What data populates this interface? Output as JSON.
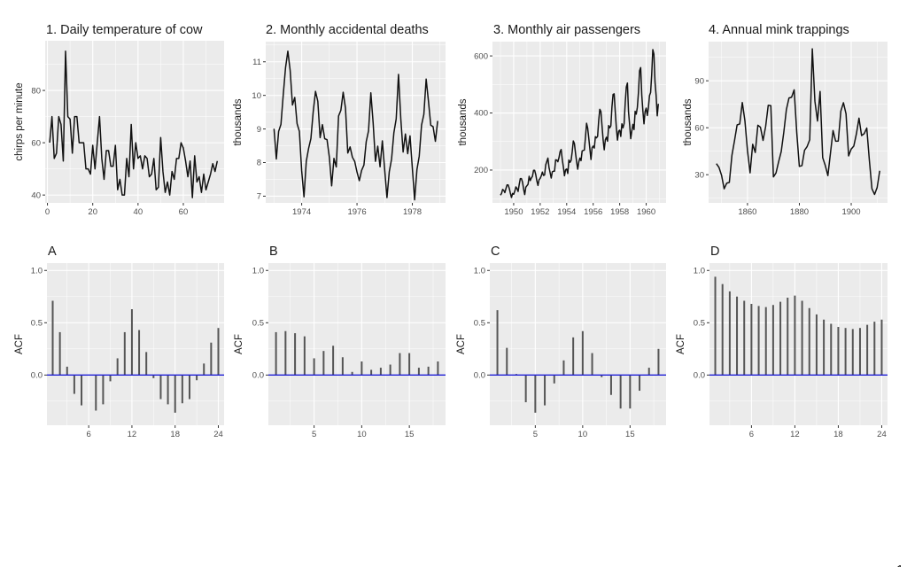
{
  "figure": {
    "corner_mark": "1"
  },
  "chart_data": [
    {
      "id": "p1",
      "type": "line",
      "title": "1. Daily temperature of cow",
      "xlabel": "",
      "ylabel": "chirps per minute",
      "xlim": [
        -1,
        78
      ],
      "ylim": [
        37,
        99
      ],
      "xticks": [
        0,
        20,
        40,
        60
      ],
      "yticks": [
        40,
        60,
        80
      ],
      "x_start": 1,
      "x_step": 1,
      "values": [
        60,
        70,
        54,
        56,
        70,
        67,
        53,
        95,
        70,
        69,
        56,
        70,
        70,
        60,
        60,
        60,
        50,
        50,
        48,
        59,
        50,
        60,
        70,
        54,
        46,
        57,
        57,
        51,
        51,
        59,
        42,
        46,
        40,
        40,
        54,
        47,
        67,
        50,
        60,
        54,
        55,
        50,
        55,
        54,
        47,
        48,
        54,
        42,
        43,
        62,
        49,
        41,
        45,
        40,
        49,
        46,
        54,
        54,
        60,
        58,
        53,
        47,
        53,
        39,
        55,
        45,
        47,
        41,
        48,
        42,
        45,
        48,
        52,
        49,
        53
      ],
      "grid": true
    },
    {
      "id": "p2",
      "type": "line",
      "title": "2. Monthly accidental deaths",
      "xlabel": "",
      "ylabel": "thousands",
      "xlim": [
        1972.7,
        1979.2
      ],
      "ylim": [
        6.8,
        11.6
      ],
      "xticks": [
        1974,
        1976,
        1978
      ],
      "yticks": [
        7,
        8,
        9,
        10,
        11
      ],
      "x_start": 1973.0,
      "x_step": 0.08333,
      "values": [
        9.007,
        8.106,
        8.928,
        9.137,
        10.017,
        10.826,
        11.317,
        10.744,
        9.713,
        9.938,
        9.161,
        8.927,
        7.75,
        6.981,
        8.038,
        8.422,
        8.714,
        9.512,
        10.12,
        9.823,
        8.743,
        9.129,
        8.71,
        8.68,
        8.162,
        7.306,
        8.124,
        7.87,
        9.387,
        9.556,
        10.093,
        9.62,
        8.285,
        8.466,
        8.16,
        8.034,
        7.717,
        7.461,
        7.767,
        7.925,
        8.623,
        8.945,
        10.078,
        9.179,
        8.037,
        8.488,
        7.874,
        8.647,
        7.792,
        6.957,
        7.726,
        8.106,
        8.89,
        9.299,
        10.625,
        9.302,
        8.314,
        8.85,
        8.265,
        8.796,
        7.836,
        6.892,
        7.791,
        8.192,
        9.115,
        9.434,
        10.484,
        9.827,
        9.11,
        9.07,
        8.633,
        9.24
      ],
      "grid": true
    },
    {
      "id": "p3",
      "type": "line",
      "title": "3. Monthly air passengers",
      "xlabel": "",
      "ylabel": "thousands",
      "xlim": [
        1948.4,
        1961.5
      ],
      "ylim": [
        85,
        650
      ],
      "xticks": [
        1950,
        1952,
        1954,
        1956,
        1958,
        1960
      ],
      "yticks": [
        200,
        400,
        600
      ],
      "x_start": 1949.0,
      "x_step": 0.08333,
      "values": [
        112,
        118,
        132,
        129,
        121,
        135,
        148,
        148,
        136,
        119,
        104,
        118,
        115,
        126,
        141,
        135,
        125,
        149,
        170,
        170,
        158,
        133,
        114,
        140,
        145,
        150,
        178,
        163,
        172,
        178,
        199,
        199,
        184,
        162,
        146,
        166,
        171,
        180,
        193,
        181,
        183,
        218,
        230,
        242,
        209,
        191,
        172,
        194,
        196,
        196,
        236,
        235,
        229,
        243,
        264,
        272,
        237,
        211,
        180,
        201,
        204,
        188,
        235,
        227,
        234,
        264,
        302,
        293,
        259,
        229,
        203,
        229,
        242,
        233,
        267,
        269,
        270,
        315,
        364,
        347,
        312,
        274,
        237,
        278,
        284,
        277,
        317,
        313,
        318,
        374,
        413,
        405,
        355,
        306,
        271,
        306,
        315,
        301,
        356,
        348,
        355,
        422,
        465,
        467,
        404,
        347,
        305,
        336,
        340,
        318,
        362,
        348,
        363,
        435,
        491,
        505,
        404,
        359,
        310,
        337,
        360,
        342,
        406,
        396,
        420,
        472,
        548,
        559,
        463,
        407,
        362,
        405,
        417,
        391,
        419,
        461,
        472,
        535,
        622,
        606,
        508,
        461,
        390,
        432
      ],
      "grid": true
    },
    {
      "id": "p4",
      "type": "line",
      "title": "4. Annual mink trappings",
      "xlabel": "",
      "ylabel": "thousands",
      "xlim": [
        1845,
        1914
      ],
      "ylim": [
        12,
        115
      ],
      "xticks": [
        1860,
        1880,
        1900
      ],
      "yticks": [
        30,
        60,
        90
      ],
      "x_start": 1848,
      "x_step": 1,
      "values": [
        37.1,
        34.7,
        29.6,
        21.0,
        24.6,
        25.1,
        42.4,
        51.8,
        61.8,
        62.4,
        76.1,
        64.5,
        45.4,
        31.2,
        49.4,
        44.2,
        61.6,
        60.3,
        51.9,
        60.8,
        74.3,
        74.1,
        28.6,
        31.1,
        38.2,
        44.7,
        57.1,
        71.6,
        79.0,
        79.5,
        84.2,
        56.8,
        35.3,
        35.8,
        45.6,
        48.0,
        52.3,
        110.4,
        76.9,
        64.3,
        83.2,
        40.9,
        35.9,
        29.4,
        43.8,
        58.2,
        51.4,
        51.5,
        70.6,
        76.0,
        68.9,
        42.0,
        46.4,
        48.3,
        56.1,
        66.1,
        55.0,
        56.2,
        59.8,
        39.2,
        21.0,
        17.4,
        21.8,
        32.5
      ],
      "grid": true
    },
    {
      "id": "pA",
      "type": "bar",
      "title": "A",
      "xlabel": "",
      "ylabel": "ACF",
      "xlim": [
        0.2,
        24.8
      ],
      "ylim": [
        -0.48,
        1.07
      ],
      "xticks": [
        6,
        12,
        18,
        24
      ],
      "yticks": [
        0.0,
        0.5,
        1.0
      ],
      "lags": [
        1,
        2,
        3,
        4,
        5,
        6,
        7,
        8,
        9,
        10,
        11,
        12,
        13,
        14,
        15,
        16,
        17,
        18,
        19,
        20,
        21,
        22,
        23,
        24
      ],
      "values": [
        0.71,
        0.41,
        0.08,
        -0.18,
        -0.29,
        0.0,
        -0.34,
        -0.28,
        -0.06,
        0.16,
        0.41,
        0.63,
        0.43,
        0.22,
        -0.03,
        -0.23,
        -0.28,
        -0.36,
        -0.27,
        -0.23,
        -0.05,
        0.11,
        0.31,
        0.45
      ],
      "grid": true
    },
    {
      "id": "pB",
      "type": "bar",
      "title": "B",
      "xlabel": "",
      "ylabel": "ACF",
      "xlim": [
        0.2,
        18.8
      ],
      "ylim": [
        -0.48,
        1.07
      ],
      "xticks": [
        5,
        10,
        15
      ],
      "yticks": [
        0.0,
        0.5,
        1.0
      ],
      "lags": [
        1,
        2,
        3,
        4,
        5,
        6,
        7,
        8,
        9,
        10,
        11,
        12,
        13,
        14,
        15,
        16,
        17,
        18
      ],
      "values": [
        0.41,
        0.42,
        0.4,
        0.37,
        0.16,
        0.23,
        0.28,
        0.17,
        0.03,
        0.13,
        0.05,
        0.07,
        0.1,
        0.21,
        0.21,
        0.07,
        0.08,
        0.13
      ],
      "grid": true
    },
    {
      "id": "pC",
      "type": "bar",
      "title": "C",
      "xlabel": "",
      "ylabel": "ACF",
      "xlim": [
        0.2,
        18.8
      ],
      "ylim": [
        -0.48,
        1.07
      ],
      "xticks": [
        5,
        10,
        15
      ],
      "yticks": [
        0.0,
        0.5,
        1.0
      ],
      "lags": [
        1,
        2,
        3,
        4,
        5,
        6,
        7,
        8,
        9,
        10,
        11,
        12,
        13,
        14,
        15,
        16,
        17,
        18
      ],
      "values": [
        0.62,
        0.26,
        0.01,
        -0.26,
        -0.36,
        -0.29,
        -0.08,
        0.14,
        0.36,
        0.42,
        0.21,
        -0.02,
        -0.19,
        -0.32,
        -0.32,
        -0.15,
        0.07,
        0.25
      ],
      "grid": true
    },
    {
      "id": "pD",
      "type": "bar",
      "title": "D",
      "xlabel": "",
      "ylabel": "ACF",
      "xlim": [
        0.2,
        24.8
      ],
      "ylim": [
        -0.48,
        1.07
      ],
      "xticks": [
        6,
        12,
        18,
        24
      ],
      "yticks": [
        0.0,
        0.5,
        1.0
      ],
      "lags": [
        1,
        2,
        3,
        4,
        5,
        6,
        7,
        8,
        9,
        10,
        11,
        12,
        13,
        14,
        15,
        16,
        17,
        18,
        19,
        20,
        21,
        22,
        23,
        24
      ],
      "values": [
        0.94,
        0.87,
        0.8,
        0.75,
        0.71,
        0.68,
        0.66,
        0.65,
        0.67,
        0.7,
        0.74,
        0.76,
        0.71,
        0.64,
        0.58,
        0.53,
        0.49,
        0.46,
        0.45,
        0.44,
        0.45,
        0.48,
        0.51,
        0.53
      ],
      "grid": true
    }
  ]
}
